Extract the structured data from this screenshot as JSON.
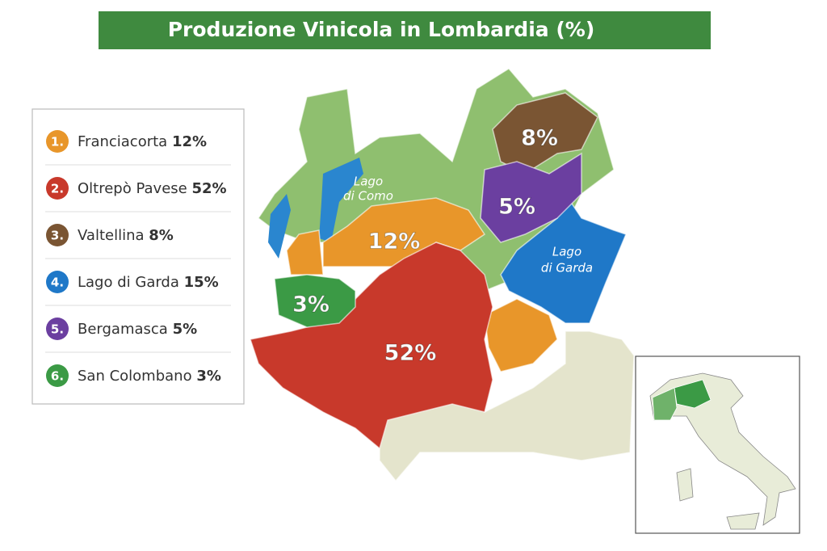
{
  "header": {
    "title": "Produzione Vinicola in Lombardia (%)"
  },
  "regions": [
    {
      "index": "1.",
      "name": "Franciacorta",
      "percent": "12%",
      "color": "#e8962a"
    },
    {
      "index": "2.",
      "name": "Oltrepò Pavese",
      "percent": "52%",
      "color": "#c8392b"
    },
    {
      "index": "3.",
      "name": "Valtellina",
      "percent": "8%",
      "color": "#7a5533"
    },
    {
      "index": "4.",
      "name": "Lago di Garda",
      "percent": "15%",
      "color": "#1f78c8"
    },
    {
      "index": "5.",
      "name": "Bergamasca",
      "percent": "5%",
      "color": "#6b3fa0"
    },
    {
      "index": "6.",
      "name": "San Colombano",
      "percent": "3%",
      "color": "#3b9a45"
    }
  ],
  "lakes": [
    {
      "lines": [
        "Lago",
        "di Como"
      ]
    },
    {
      "lines": [
        "Lago",
        "di Garda"
      ]
    }
  ]
}
